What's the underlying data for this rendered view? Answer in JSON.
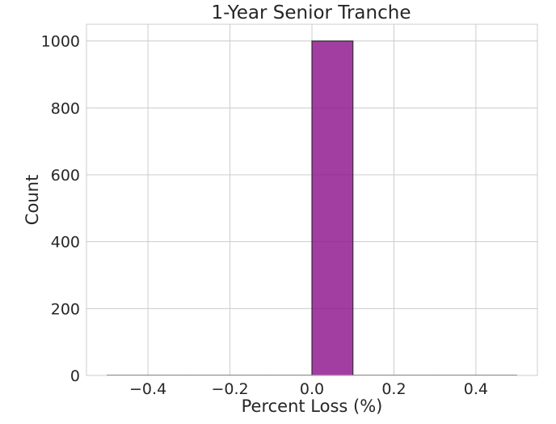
{
  "chart_data": {
    "type": "bar",
    "title": "1-Year Senior Tranche",
    "xlabel": "Percent Loss (%)",
    "ylabel": "Count",
    "xlim": [
      -0.55,
      0.55
    ],
    "ylim": [
      0,
      1050
    ],
    "xticks": [
      -0.4,
      -0.2,
      0.0,
      0.2,
      0.4
    ],
    "xtick_labels": [
      "−0.4",
      "−0.2",
      "0.0",
      "0.2",
      "0.4"
    ],
    "yticks": [
      0,
      200,
      400,
      600,
      800,
      1000
    ],
    "ytick_labels": [
      "0",
      "200",
      "400",
      "600",
      "800",
      "1000"
    ],
    "grid": true,
    "bins": [
      {
        "left": -0.5,
        "right": -0.4,
        "count": 0
      },
      {
        "left": -0.4,
        "right": -0.3,
        "count": 0
      },
      {
        "left": -0.3,
        "right": -0.2,
        "count": 0
      },
      {
        "left": -0.2,
        "right": -0.1,
        "count": 0
      },
      {
        "left": -0.1,
        "right": 0.0,
        "count": 0
      },
      {
        "left": 0.0,
        "right": 0.1,
        "count": 1000
      },
      {
        "left": 0.1,
        "right": 0.2,
        "count": 0
      },
      {
        "left": 0.2,
        "right": 0.3,
        "count": 0
      },
      {
        "left": 0.3,
        "right": 0.4,
        "count": 0
      },
      {
        "left": 0.4,
        "right": 0.5,
        "count": 0
      }
    ],
    "bar_color": "#8b0e8b",
    "bar_edge_color": "#262626"
  }
}
